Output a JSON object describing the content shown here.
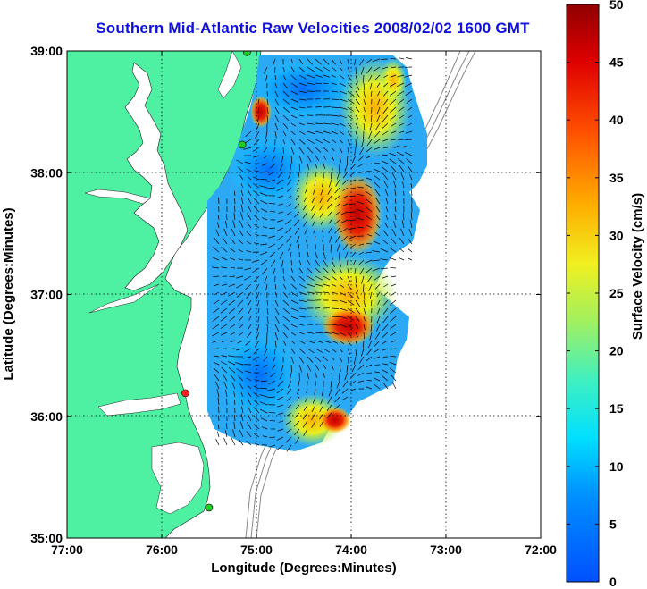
{
  "title": "Southern Mid-Atlantic Raw Velocities 2008/02/02 1600 GMT",
  "map": {
    "x_axis": {
      "label": "Longitude (Degrees:Minutes)",
      "ticks": [
        "77:00",
        "76:00",
        "75:00",
        "74:00",
        "73:00",
        "72:00"
      ]
    },
    "y_axis": {
      "label": "Latitude (Degrees:Minutes)",
      "ticks": [
        "39:00",
        "38:00",
        "37:00",
        "36:00",
        "35:00"
      ]
    },
    "lon_range": [
      -77,
      -72
    ],
    "lat_range": [
      35,
      39
    ],
    "land_color": "#4ef0a2",
    "grid": "dotted",
    "stations": [
      {
        "color": "#22cc22",
        "lon": -75.1,
        "lat": 38.99
      },
      {
        "color": "#22cc22",
        "lon": -75.15,
        "lat": 38.23
      },
      {
        "color": "#ff2020",
        "lon": -75.75,
        "lat": 36.19
      },
      {
        "color": "#22cc22",
        "lon": -75.5,
        "lat": 35.25
      }
    ]
  },
  "colorbar": {
    "label": "Surface Velocity (cm/s)",
    "ticks": [
      "0",
      "5",
      "10",
      "15",
      "20",
      "25",
      "30",
      "35",
      "40",
      "45",
      "50"
    ],
    "range": [
      0,
      50
    ],
    "colormap": "jet"
  }
}
